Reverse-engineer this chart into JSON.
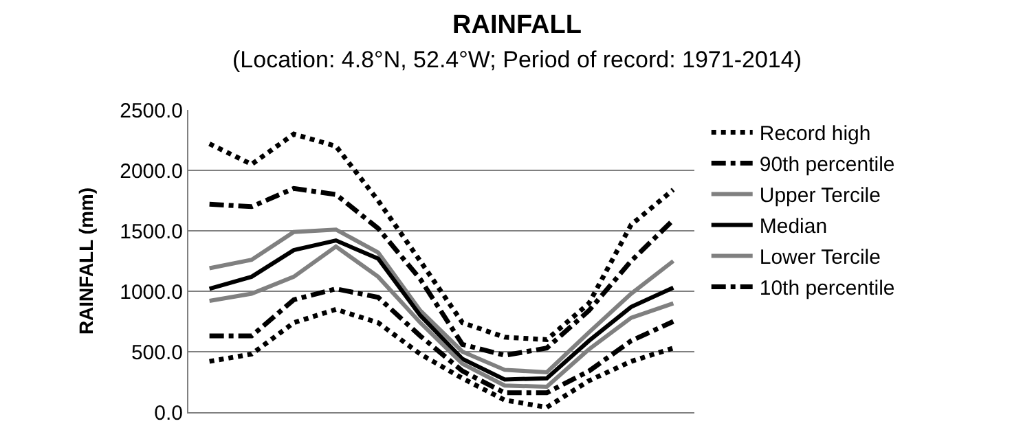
{
  "chart_data": {
    "type": "line",
    "title": "RAINFALL",
    "subtitle": "(Location: 4.8°N, 52.4°W; Period of record: 1971-2014)",
    "ylabel": "RAINFALL (mm)",
    "categories": [
      null,
      null,
      null,
      null,
      null,
      null,
      null,
      null,
      null,
      null,
      null,
      null
    ],
    "ylim": [
      0,
      2500
    ],
    "yticks": [
      {
        "value": 0,
        "label": "0.0"
      },
      {
        "value": 500,
        "label": "500.0"
      },
      {
        "value": 1000,
        "label": "1000.0"
      },
      {
        "value": 1500,
        "label": "1500.0"
      },
      {
        "value": 2000,
        "label": "2000.0"
      },
      {
        "value": 2500,
        "label": "2500.0"
      }
    ],
    "grid": "y",
    "legend": "right",
    "marker": "none",
    "series": [
      {
        "name": "Record high",
        "color": "#000000",
        "line_style": "dotted",
        "values": [
          2220,
          2050,
          2300,
          2200,
          1750,
          1250,
          740,
          620,
          600,
          900,
          1550,
          1840
        ]
      },
      {
        "name": "90th percentile",
        "color": "#000000",
        "line_style": "dashdot",
        "values": [
          1720,
          1700,
          1850,
          1800,
          1520,
          1100,
          560,
          470,
          530,
          840,
          1250,
          1590
        ]
      },
      {
        "name": "Upper Tercile",
        "color": "#808080",
        "line_style": "solid",
        "values": [
          1190,
          1260,
          1490,
          1510,
          1320,
          840,
          500,
          350,
          330,
          660,
          980,
          1250
        ]
      },
      {
        "name": "Median",
        "color": "#000000",
        "line_style": "solid",
        "values": [
          1020,
          1120,
          1340,
          1420,
          1270,
          800,
          440,
          270,
          280,
          590,
          870,
          1030
        ]
      },
      {
        "name": "Lower Tercile",
        "color": "#808080",
        "line_style": "solid",
        "values": [
          920,
          980,
          1120,
          1370,
          1120,
          740,
          400,
          220,
          210,
          520,
          780,
          900
        ]
      },
      {
        "name": "10th percentile",
        "color": "#000000",
        "line_style": "dashdot",
        "values": [
          630,
          630,
          930,
          1020,
          950,
          630,
          340,
          160,
          160,
          340,
          590,
          750
        ]
      },
      {
        "color": "#000000",
        "line_style": "dotted",
        "values": [
          420,
          480,
          740,
          850,
          740,
          480,
          280,
          100,
          40,
          260,
          420,
          530
        ]
      }
    ]
  }
}
